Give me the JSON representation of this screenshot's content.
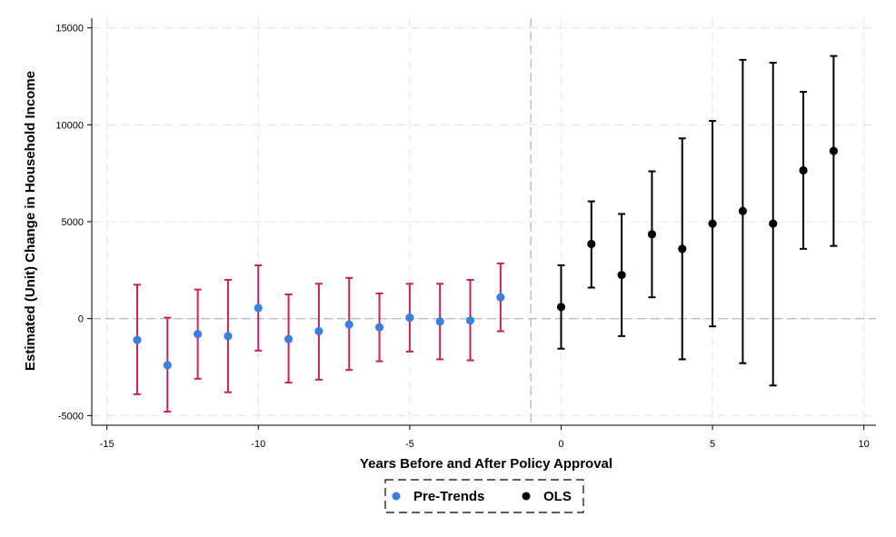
{
  "chart_data": {
    "type": "scatter",
    "title": "",
    "xlabel": "Years Before and After Policy Approval",
    "ylabel": "Estimated (Unit) Change in Household Income",
    "xlim": [
      -15.5,
      10.4
    ],
    "ylim": [
      -5500,
      15500
    ],
    "xticks": [
      -15,
      -10,
      -5,
      0,
      5,
      10
    ],
    "xtick_labels": [
      "-15",
      "-10",
      "-5",
      "0",
      "5",
      "10"
    ],
    "yticks": [
      -5000,
      0,
      5000,
      10000,
      15000
    ],
    "ytick_labels": [
      "-5000",
      "0",
      "5000",
      "10000",
      "15000"
    ],
    "grid": true,
    "reference_lines": {
      "horizontal": 0,
      "vertical": -1
    },
    "legend": {
      "position": "bottom",
      "entries": [
        "Pre-Trends",
        "OLS"
      ]
    },
    "series": [
      {
        "name": "Pre-Trends",
        "marker_color": "#3b7fe0",
        "errorbar_color": "#cc1f5a",
        "points": [
          {
            "x": -14,
            "y": -1100,
            "lo": -3900,
            "hi": 1750
          },
          {
            "x": -13,
            "y": -2400,
            "lo": -4800,
            "hi": 50
          },
          {
            "x": -12,
            "y": -800,
            "lo": -3100,
            "hi": 1500
          },
          {
            "x": -11,
            "y": -900,
            "lo": -3800,
            "hi": 2000
          },
          {
            "x": -10,
            "y": 550,
            "lo": -1650,
            "hi": 2750
          },
          {
            "x": -9,
            "y": -1050,
            "lo": -3300,
            "hi": 1250
          },
          {
            "x": -8,
            "y": -650,
            "lo": -3150,
            "hi": 1800
          },
          {
            "x": -7,
            "y": -300,
            "lo": -2650,
            "hi": 2100
          },
          {
            "x": -6,
            "y": -450,
            "lo": -2200,
            "hi": 1300
          },
          {
            "x": -5,
            "y": 50,
            "lo": -1700,
            "hi": 1800
          },
          {
            "x": -4,
            "y": -150,
            "lo": -2100,
            "hi": 1800
          },
          {
            "x": -3,
            "y": -100,
            "lo": -2150,
            "hi": 2000
          },
          {
            "x": -2,
            "y": 1100,
            "lo": -650,
            "hi": 2850
          }
        ]
      },
      {
        "name": "OLS",
        "marker_color": "#000000",
        "errorbar_color": "#000000",
        "points": [
          {
            "x": 0,
            "y": 600,
            "lo": -1550,
            "hi": 2750
          },
          {
            "x": 1,
            "y": 3850,
            "lo": 1600,
            "hi": 6050
          },
          {
            "x": 2,
            "y": 2250,
            "lo": -900,
            "hi": 5400
          },
          {
            "x": 3,
            "y": 4350,
            "lo": 1100,
            "hi": 7600
          },
          {
            "x": 4,
            "y": 3600,
            "lo": -2100,
            "hi": 9300
          },
          {
            "x": 5,
            "y": 4900,
            "lo": -400,
            "hi": 10200
          },
          {
            "x": 6,
            "y": 5550,
            "lo": -2300,
            "hi": 13350
          },
          {
            "x": 7,
            "y": 4900,
            "lo": -3450,
            "hi": 13200
          },
          {
            "x": 8,
            "y": 7650,
            "lo": 3600,
            "hi": 11700
          },
          {
            "x": 9,
            "y": 8650,
            "lo": 3750,
            "hi": 13550
          }
        ]
      }
    ]
  }
}
